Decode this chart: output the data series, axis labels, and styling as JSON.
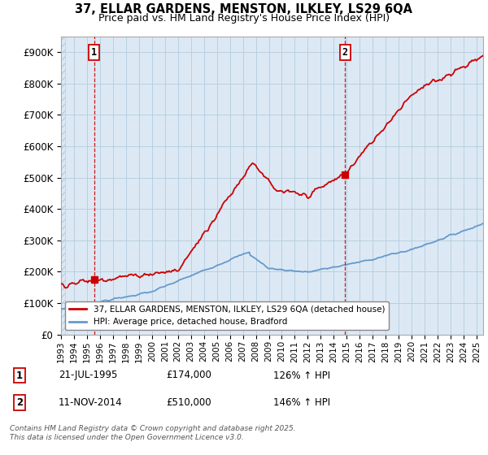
{
  "title_line1": "37, ELLAR GARDENS, MENSTON, ILKLEY, LS29 6QA",
  "title_line2": "Price paid vs. HM Land Registry's House Price Index (HPI)",
  "ylim": [
    0,
    950000
  ],
  "yticks": [
    0,
    100000,
    200000,
    300000,
    400000,
    500000,
    600000,
    700000,
    800000,
    900000
  ],
  "ytick_labels": [
    "£0",
    "£100K",
    "£200K",
    "£300K",
    "£400K",
    "£500K",
    "£600K",
    "£700K",
    "£800K",
    "£900K"
  ],
  "xlim_start": 1993.0,
  "xlim_end": 2025.5,
  "sale1_date": 1995.55,
  "sale1_price": 174000,
  "sale1_label": "1",
  "sale1_date_str": "21-JUL-1995",
  "sale1_price_str": "£174,000",
  "sale1_hpi": "126% ↑ HPI",
  "sale2_date": 2014.86,
  "sale2_price": 510000,
  "sale2_label": "2",
  "sale2_date_str": "11-NOV-2014",
  "sale2_price_str": "£510,000",
  "sale2_hpi": "146% ↑ HPI",
  "line_color_property": "#cc0000",
  "line_color_hpi": "#6699cc",
  "plot_bg_color": "#dce9f5",
  "legend_label_property": "37, ELLAR GARDENS, MENSTON, ILKLEY, LS29 6QA (detached house)",
  "legend_label_hpi": "HPI: Average price, detached house, Bradford",
  "footnote": "Contains HM Land Registry data © Crown copyright and database right 2025.\nThis data is licensed under the Open Government Licence v3.0.",
  "background_color": "#ffffff",
  "grid_color": "#b8cfe0",
  "sale_marker_color": "#cc0000",
  "sale_box_color": "#cc0000",
  "hatch_color": "#b8cfe0"
}
